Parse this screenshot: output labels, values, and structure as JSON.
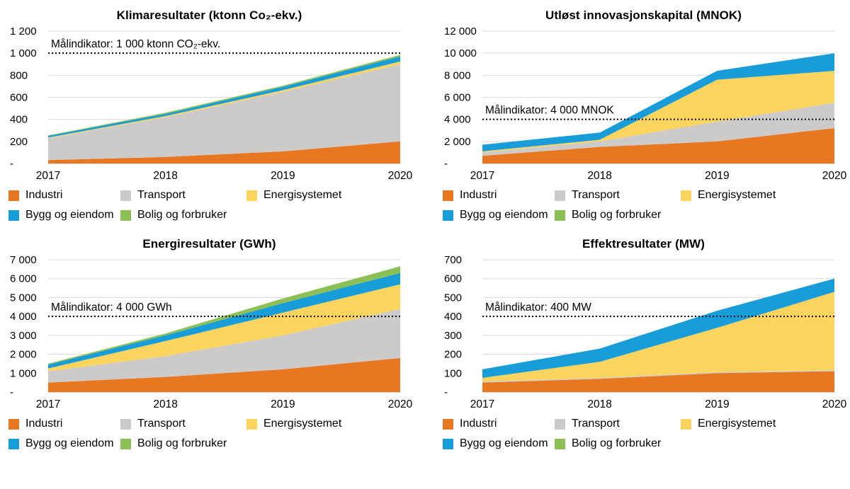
{
  "page": {
    "background": "#ffffff"
  },
  "colors": {
    "gridline": "#d9d9d9",
    "axis": "#b3b0ae",
    "target_line": "#000000",
    "text": "#000000",
    "industri": "#e87722",
    "transport": "#cdcbc9",
    "energisystemet": "#fdd55e",
    "bygg_og_eiendom": "#189dd9",
    "bolig_og_forbruker": "#8dbf57"
  },
  "chart_data": [
    {
      "type": "area",
      "stacked": true,
      "title": "Klimaresultater (ktonn Co₂-ekv.)",
      "categories": [
        "2017",
        "2018",
        "2019",
        "2020"
      ],
      "series": [
        {
          "name": "Industri",
          "color": "#e87722",
          "values": [
            30,
            60,
            110,
            200
          ]
        },
        {
          "name": "Transport",
          "color": "#cdcbc9",
          "values": [
            200,
            360,
            540,
            700
          ]
        },
        {
          "name": "Energisystemet",
          "color": "#fdd55e",
          "values": [
            5,
            10,
            15,
            25
          ]
        },
        {
          "name": "Bygg og eiendom",
          "color": "#189dd9",
          "values": [
            15,
            20,
            30,
            45
          ]
        },
        {
          "name": "Bolig og forbruker",
          "color": "#8dbf57",
          "values": [
            5,
            10,
            10,
            15
          ]
        }
      ],
      "ylim": [
        0,
        1200
      ],
      "ytick_step": 200,
      "ytick_labels": [
        "-",
        "200",
        "400",
        "600",
        "800",
        "1 000",
        "1 200"
      ],
      "target": {
        "value": 1000,
        "label": "Målindikator: 1 000 ktonn CO₂-ekv."
      },
      "grid": true,
      "legend_position": "bottom"
    },
    {
      "type": "area",
      "stacked": true,
      "title": "Utløst innovasjonskapital (MNOK)",
      "categories": [
        "2017",
        "2018",
        "2019",
        "2020"
      ],
      "series": [
        {
          "name": "Industri",
          "color": "#e87722",
          "values": [
            700,
            1500,
            2000,
            3200
          ]
        },
        {
          "name": "Transport",
          "color": "#cdcbc9",
          "values": [
            300,
            500,
            1800,
            2300
          ]
        },
        {
          "name": "Energisystemet",
          "color": "#fdd55e",
          "values": [
            100,
            150,
            3800,
            2900
          ]
        },
        {
          "name": "Bygg og eiendom",
          "color": "#189dd9",
          "values": [
            600,
            650,
            800,
            1600
          ]
        },
        {
          "name": "Bolig og forbruker",
          "color": "#8dbf57",
          "values": [
            0,
            0,
            0,
            0
          ]
        }
      ],
      "ylim": [
        0,
        12000
      ],
      "ytick_step": 2000,
      "ytick_labels": [
        "-",
        "2 000",
        "4 000",
        "6 000",
        "8 000",
        "10 000",
        "12 000"
      ],
      "target": {
        "value": 4000,
        "label": "Målindikator: 4 000 MNOK"
      },
      "grid": true,
      "legend_position": "bottom"
    },
    {
      "type": "area",
      "stacked": true,
      "title": "Energiresultater (GWh)",
      "categories": [
        "2017",
        "2018",
        "2019",
        "2020"
      ],
      "series": [
        {
          "name": "Industri",
          "color": "#e87722",
          "values": [
            500,
            800,
            1200,
            1800
          ]
        },
        {
          "name": "Transport",
          "color": "#cdcbc9",
          "values": [
            600,
            1100,
            1800,
            2600
          ]
        },
        {
          "name": "Energisystemet",
          "color": "#fdd55e",
          "values": [
            150,
            800,
            1200,
            1300
          ]
        },
        {
          "name": "Bygg og eiendom",
          "color": "#189dd9",
          "values": [
            200,
            300,
            500,
            600
          ]
        },
        {
          "name": "Bolig og forbruker",
          "color": "#8dbf57",
          "values": [
            50,
            100,
            250,
            350
          ]
        }
      ],
      "ylim": [
        0,
        7000
      ],
      "ytick_step": 1000,
      "ytick_labels": [
        "-",
        "1 000",
        "2 000",
        "3 000",
        "4 000",
        "5 000",
        "6 000",
        "7 000"
      ],
      "target": {
        "value": 4000,
        "label": "Målindikator: 4 000 GWh"
      },
      "grid": true,
      "legend_position": "bottom"
    },
    {
      "type": "area",
      "stacked": true,
      "title": "Effektresultater (MW)",
      "categories": [
        "2017",
        "2018",
        "2019",
        "2020"
      ],
      "series": [
        {
          "name": "Industri",
          "color": "#e87722",
          "values": [
            50,
            70,
            100,
            110
          ]
        },
        {
          "name": "Transport",
          "color": "#cdcbc9",
          "values": [
            5,
            5,
            5,
            5
          ]
        },
        {
          "name": "Energisystemet",
          "color": "#fdd55e",
          "values": [
            20,
            85,
            235,
            415
          ]
        },
        {
          "name": "Bygg og eiendom",
          "color": "#189dd9",
          "values": [
            45,
            70,
            90,
            70
          ]
        },
        {
          "name": "Bolig og forbruker",
          "color": "#8dbf57",
          "values": [
            0,
            0,
            0,
            0
          ]
        }
      ],
      "ylim": [
        0,
        700
      ],
      "ytick_step": 100,
      "ytick_labels": [
        "-",
        "100",
        "200",
        "300",
        "400",
        "500",
        "600",
        "700"
      ],
      "target": {
        "value": 400,
        "label": "Målindikator: 400 MW"
      },
      "grid": true,
      "legend_position": "bottom"
    }
  ]
}
